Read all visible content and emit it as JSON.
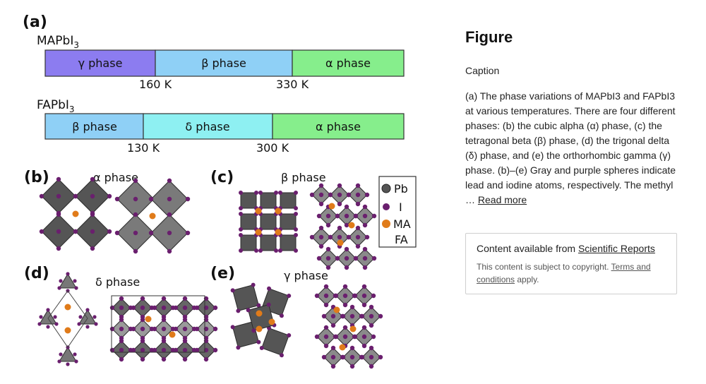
{
  "figure": {
    "panel_a": "(a)",
    "panel_b": "(b)",
    "panel_c": "(c)",
    "panel_d": "(d)",
    "panel_e": "(e)",
    "mapbi3_base": "MAPbI",
    "mapbi3_sub": "3",
    "fapbi3_base": "FAPbI",
    "fapbi3_sub": "3",
    "mapbi3_phases": [
      {
        "label": "γ phase",
        "color": "#8c7cf0"
      },
      {
        "label": "β phase",
        "color": "#8fd0f6"
      },
      {
        "label": "α phase",
        "color": "#86ee8c"
      }
    ],
    "mapbi3_temps": [
      "160 K",
      "330 K"
    ],
    "fapbi3_phases": [
      {
        "label": "β phase",
        "color": "#8fd0f6"
      },
      {
        "label": "δ phase",
        "color": "#8ef0f2"
      },
      {
        "label": "α phase",
        "color": "#86ee8c"
      }
    ],
    "fapbi3_temps": [
      "130 K",
      "300 K"
    ],
    "alpha_title": "α phase",
    "beta_title": "β phase",
    "delta_title": "δ phase",
    "gamma_title": "γ phase",
    "legend": [
      "Pb",
      "I",
      "MA",
      "FA"
    ]
  },
  "sidebar": {
    "heading": "Figure",
    "caption_label": "Caption",
    "caption_text": "(a) The phase variations of MAPbI3 and FAPbI3 at various temperatures. There are four different phases: (b) the cubic alpha (α) phase, (c) the tetragonal beta (β) phase, (d) the trigonal delta (δ) phase, and (e) the orthorhombic gamma (γ) phase. (b)–(e) Gray and purple spheres indicate lead and iodine atoms, respectively. The methyl …",
    "read_more": "Read more",
    "source_prefix": "Content available from ",
    "source_link": "Scientific Reports",
    "copyright_prefix": "This content is subject to copyright. ",
    "terms_link": "Terms and conditions",
    "copyright_suffix": " apply."
  },
  "colors": {
    "octahedron": "#555555",
    "iodine": "#6a1f6e",
    "organic": "#e07b1a"
  }
}
